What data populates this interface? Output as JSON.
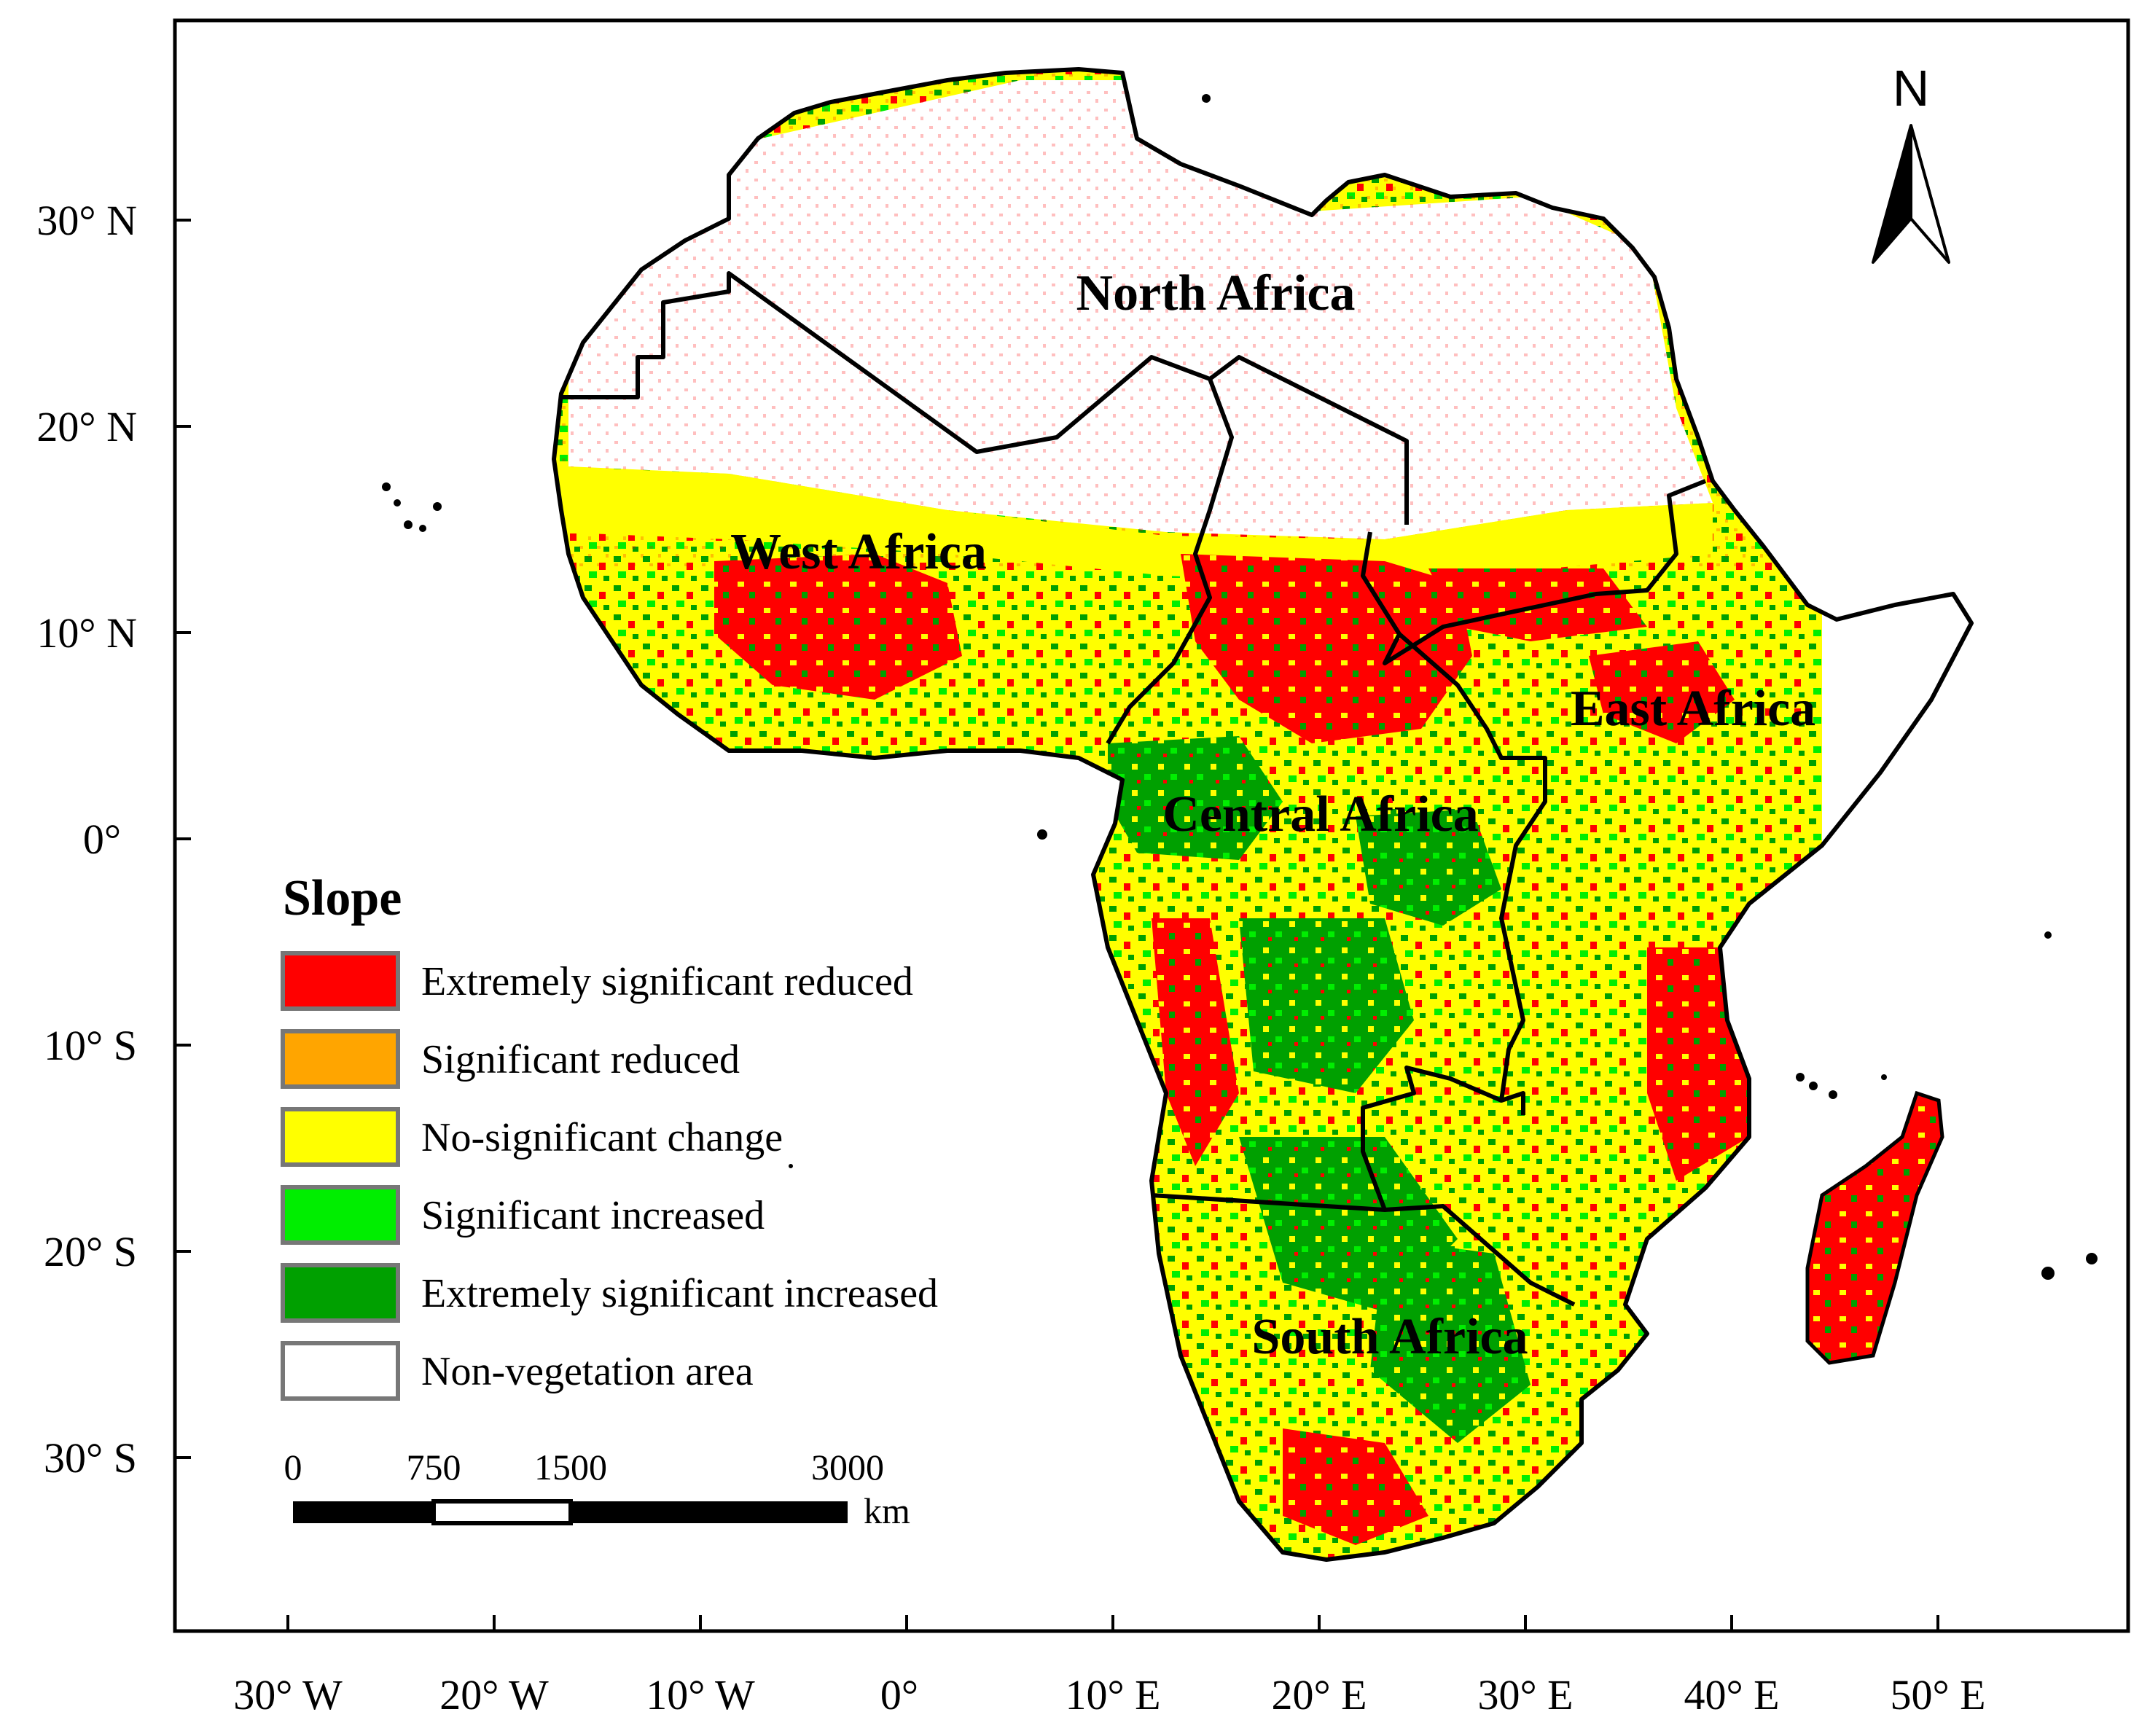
{
  "map": {
    "y_axis_labels": [
      "30° N",
      "20° N",
      "10° N",
      "0°",
      "10° S",
      "20° S",
      "30° S"
    ],
    "x_axis_labels": [
      "30° W",
      "20° W",
      "10° W",
      "0°",
      "10° E",
      "20° E",
      "30° E",
      "40° E",
      "50° E"
    ],
    "regions": {
      "north": "North Africa",
      "west": "West Africa",
      "central": "Central Africa",
      "east": "East Africa",
      "south": "South Africa"
    },
    "north_arrow": "N",
    "legend": {
      "title": "Slope",
      "items": [
        {
          "label": "Extremely significant reduced",
          "color": "#ff0000"
        },
        {
          "label": "Significant reduced",
          "color": "#ffa500"
        },
        {
          "label": "No-significant change",
          "color": "#ffff00"
        },
        {
          "label": "Significant increased",
          "color": "#00ee00"
        },
        {
          "label": "Extremely significant increased",
          "color": "#00a000"
        },
        {
          "label": "Non-vegetation area",
          "color": "#ffffff"
        }
      ]
    },
    "scale_bar": {
      "ticks": [
        "0",
        "750",
        "1500",
        "3000"
      ],
      "unit": "km"
    }
  }
}
